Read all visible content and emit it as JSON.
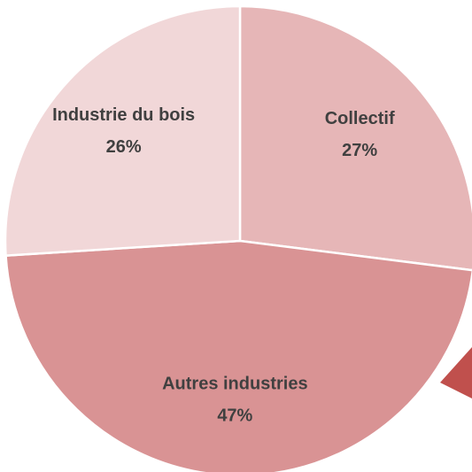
{
  "chart_data": {
    "type": "pie",
    "categories": [
      "Collectif",
      "Autres industries",
      "Industrie du bois"
    ],
    "values": [
      27,
      47,
      26
    ],
    "value_labels": [
      "27%",
      "47%",
      "26%"
    ],
    "colors": [
      "#e6b6b7",
      "#d99394",
      "#f1d7d8"
    ]
  }
}
